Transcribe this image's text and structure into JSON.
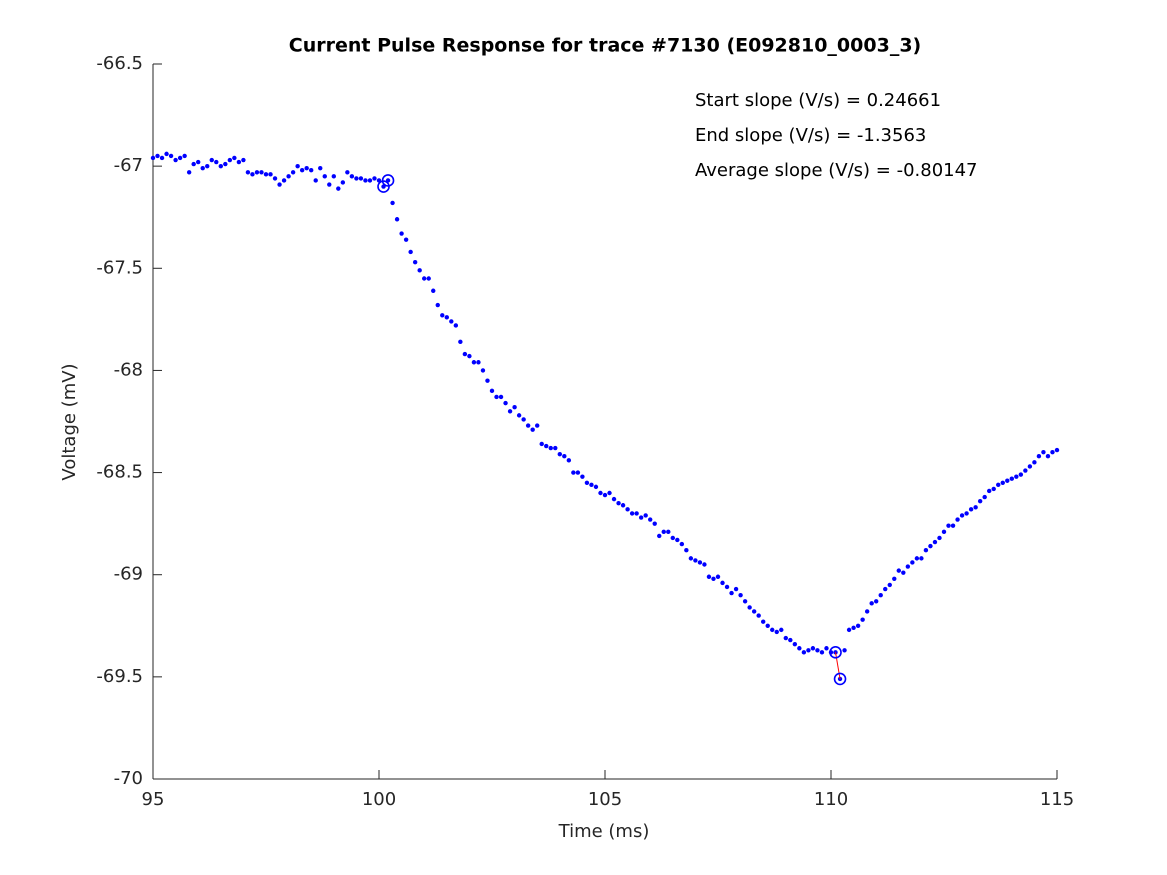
{
  "chart_data": {
    "type": "scatter",
    "title": "Current Pulse Response for trace #7130 (E092810_0003_3)",
    "xlabel": "Time (ms)",
    "ylabel": "Voltage (mV)",
    "annotations": [
      "Start slope (V/s) = 0.24661",
      "End slope (V/s) = -1.3563",
      "Average slope (V/s) = -0.80147"
    ],
    "xlim": [
      95,
      115
    ],
    "ylim": [
      -70,
      -66.5
    ],
    "xticks": [
      95,
      100,
      105,
      110,
      115
    ],
    "yticks": [
      -70,
      -69.5,
      -69,
      -68.5,
      -68,
      -67.5,
      -67,
      -66.5
    ],
    "grid": false,
    "x": [
      95,
      95.1,
      95.2,
      95.3,
      95.4,
      95.5,
      95.6,
      95.7,
      95.8,
      95.9,
      96,
      96.1,
      96.2,
      96.3,
      96.4,
      96.5,
      96.6,
      96.7,
      96.8,
      96.9,
      97,
      97.1,
      97.2,
      97.3,
      97.4,
      97.5,
      97.6,
      97.7,
      97.8,
      97.9,
      98,
      98.1,
      98.2,
      98.3,
      98.4,
      98.5,
      98.6,
      98.7,
      98.8,
      98.9,
      99,
      99.1,
      99.2,
      99.3,
      99.4,
      99.5,
      99.6,
      99.7,
      99.8,
      99.9,
      100,
      100.1,
      100.2,
      100.3,
      100.4,
      100.5,
      100.6,
      100.7,
      100.8,
      100.9,
      101,
      101.1,
      101.2,
      101.3,
      101.4,
      101.5,
      101.6,
      101.7,
      101.8,
      101.9,
      102,
      102.1,
      102.2,
      102.3,
      102.4,
      102.5,
      102.6,
      102.7,
      102.8,
      102.9,
      103,
      103.1,
      103.2,
      103.3,
      103.4,
      103.5,
      103.6,
      103.7,
      103.8,
      103.9,
      104,
      104.1,
      104.2,
      104.3,
      104.4,
      104.5,
      104.6,
      104.7,
      104.8,
      104.9,
      105,
      105.1,
      105.2,
      105.3,
      105.4,
      105.5,
      105.6,
      105.7,
      105.8,
      105.9,
      106,
      106.1,
      106.2,
      106.3,
      106.4,
      106.5,
      106.6,
      106.7,
      106.8,
      106.9,
      107,
      107.1,
      107.2,
      107.3,
      107.4,
      107.5,
      107.6,
      107.7,
      107.8,
      107.9,
      108,
      108.1,
      108.2,
      108.3,
      108.4,
      108.5,
      108.6,
      108.7,
      108.8,
      108.9,
      109,
      109.1,
      109.2,
      109.3,
      109.4,
      109.5,
      109.6,
      109.7,
      109.8,
      109.9,
      110,
      110.1,
      110.2,
      110.3,
      110.4,
      110.5,
      110.6,
      110.7,
      110.8,
      110.9,
      111,
      111.1,
      111.2,
      111.3,
      111.4,
      111.5,
      111.6,
      111.7,
      111.8,
      111.9,
      112,
      112.1,
      112.2,
      112.3,
      112.4,
      112.5,
      112.6,
      112.7,
      112.8,
      112.9,
      113,
      113.1,
      113.2,
      113.3,
      113.4,
      113.5,
      113.6,
      113.7,
      113.8,
      113.9,
      114,
      114.1,
      114.2,
      114.3,
      114.4,
      114.5,
      114.6,
      114.7,
      114.8,
      114.9,
      115
    ],
    "series": [
      {
        "color": "#0000ff",
        "values": [
          -66.96,
          -66.95,
          -66.96,
          -66.94,
          -66.95,
          -66.97,
          -66.96,
          -66.95,
          -67.03,
          -66.99,
          -66.98,
          -67.01,
          -67.0,
          -66.97,
          -66.98,
          -67.0,
          -66.99,
          -66.97,
          -66.96,
          -66.98,
          -66.97,
          -67.03,
          -67.04,
          -67.03,
          -67.03,
          -67.04,
          -67.04,
          -67.06,
          -67.09,
          -67.07,
          -67.05,
          -67.03,
          -67.0,
          -67.02,
          -67.01,
          -67.02,
          -67.07,
          -67.01,
          -67.05,
          -67.09,
          -67.05,
          -67.11,
          -67.08,
          -67.03,
          -67.05,
          -67.06,
          -67.06,
          -67.07,
          -67.07,
          -67.06,
          -67.07,
          -67.1,
          -67.07,
          -67.18,
          -67.26,
          -67.33,
          -67.36,
          -67.42,
          -67.47,
          -67.51,
          -67.55,
          -67.55,
          -67.61,
          -67.68,
          -67.73,
          -67.74,
          -67.76,
          -67.78,
          -67.86,
          -67.92,
          -67.93,
          -67.96,
          -67.96,
          -68.0,
          -68.05,
          -68.1,
          -68.13,
          -68.13,
          -68.16,
          -68.2,
          -68.18,
          -68.22,
          -68.24,
          -68.27,
          -68.29,
          -68.27,
          -68.36,
          -68.37,
          -68.38,
          -68.38,
          -68.41,
          -68.42,
          -68.44,
          -68.5,
          -68.5,
          -68.52,
          -68.55,
          -68.56,
          -68.57,
          -68.6,
          -68.61,
          -68.6,
          -68.63,
          -68.65,
          -68.66,
          -68.68,
          -68.7,
          -68.7,
          -68.72,
          -68.71,
          -68.73,
          -68.75,
          -68.81,
          -68.79,
          -68.79,
          -68.82,
          -68.83,
          -68.85,
          -68.88,
          -68.92,
          -68.93,
          -68.94,
          -68.95,
          -69.01,
          -69.02,
          -69.01,
          -69.04,
          -69.06,
          -69.09,
          -69.07,
          -69.1,
          -69.13,
          -69.16,
          -69.18,
          -69.2,
          -69.23,
          -69.25,
          -69.27,
          -69.28,
          -69.27,
          -69.31,
          -69.32,
          -69.34,
          -69.36,
          -69.38,
          -69.37,
          -69.36,
          -69.37,
          -69.38,
          -69.36,
          -69.38,
          -69.38,
          -69.51,
          -69.37,
          -69.27,
          -69.26,
          -69.25,
          -69.22,
          -69.18,
          -69.14,
          -69.13,
          -69.1,
          -69.07,
          -69.05,
          -69.02,
          -68.98,
          -68.99,
          -68.96,
          -68.94,
          -68.92,
          -68.92,
          -68.88,
          -68.86,
          -68.84,
          -68.82,
          -68.79,
          -68.76,
          -68.76,
          -68.73,
          -68.71,
          -68.7,
          -68.68,
          -68.67,
          -68.64,
          -68.62,
          -68.59,
          -68.58,
          -68.56,
          -68.55,
          -68.54,
          -68.53,
          -68.52,
          -68.51,
          -68.49,
          -68.47,
          -68.45,
          -68.42,
          -68.4,
          -68.42,
          -68.4,
          -68.39
        ]
      }
    ],
    "markers": {
      "color": "#0000ff",
      "x": [
        100.1,
        100.2,
        110.1,
        110.2
      ],
      "y": [
        -67.1,
        -67.07,
        -69.38,
        -69.51
      ]
    },
    "end_line_color": "#ff0000"
  }
}
